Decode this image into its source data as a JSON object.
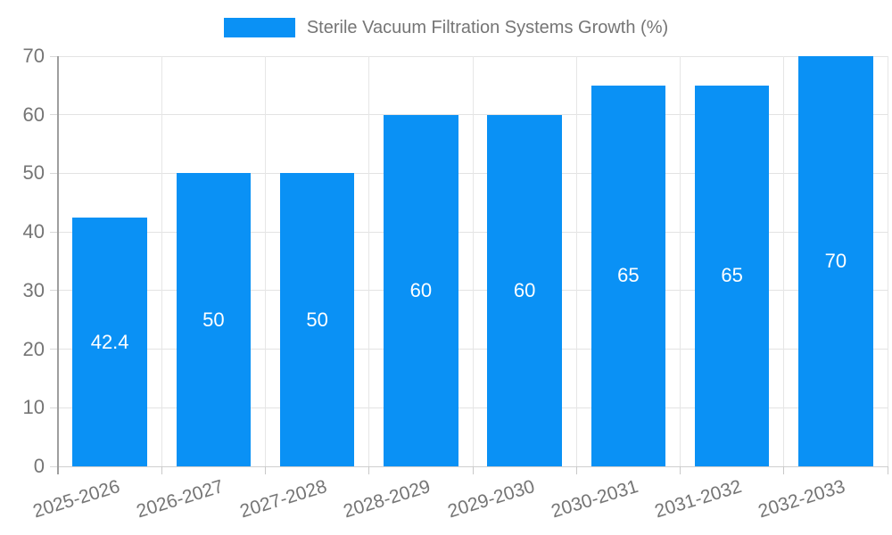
{
  "legend": {
    "label": "Sterile Vacuum Filtration Systems Growth (%)"
  },
  "chart_data": {
    "type": "bar",
    "title": "",
    "categories": [
      "2025-2026",
      "2026-2027",
      "2027-2028",
      "2028-2029",
      "2029-2030",
      "2030-2031",
      "2031-2032",
      "2032-2033"
    ],
    "values": [
      42.4,
      50,
      50,
      60,
      60,
      65,
      65,
      70
    ],
    "value_labels": [
      "42.4",
      "50",
      "50",
      "60",
      "60",
      "65",
      "65",
      "70"
    ],
    "series_label": "Sterile Vacuum Filtration Systems Growth (%)",
    "xlabel": "",
    "ylabel": "",
    "ylim": [
      0,
      70
    ],
    "yticks": [
      0,
      10,
      20,
      30,
      40,
      50,
      60,
      70
    ],
    "grid": true,
    "legend_position": "top-center",
    "bar_color": "#0a91f5",
    "value_label_color": "#ffffff",
    "axis_text_color": "#757575",
    "gridline_color": "#e3e3e3",
    "axis_line_color": "#9e9e9e",
    "x_label_rotation_deg": -17
  }
}
